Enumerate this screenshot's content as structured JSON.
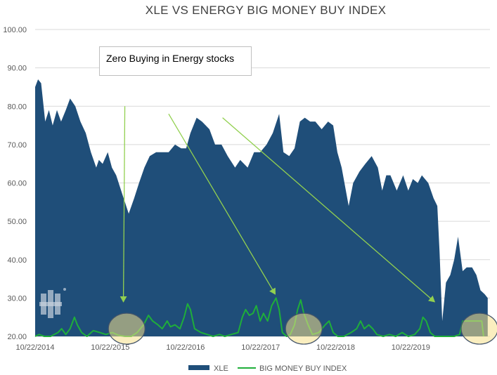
{
  "chart_data": {
    "type": "area",
    "title": "XLE VS ENERGY BIG MONEY BUY INDEX",
    "xlabel": "",
    "ylabel": "",
    "ylim": [
      20,
      100
    ],
    "yticks": [
      "20.00",
      "30.00",
      "40.00",
      "50.00",
      "60.00",
      "70.00",
      "80.00",
      "90.00",
      "100.00"
    ],
    "xlim": [
      "2014-10-22",
      "2020-11-10"
    ],
    "xticks": [
      {
        "date": "2014-10-22",
        "label": "10/22/2014"
      },
      {
        "date": "2015-10-22",
        "label": "10/22/2015"
      },
      {
        "date": "2016-10-22",
        "label": "10/22/2016"
      },
      {
        "date": "2017-10-22",
        "label": "10/22/2017"
      },
      {
        "date": "2018-10-22",
        "label": "10/22/2018"
      },
      {
        "date": "2019-10-22",
        "label": "10/22/2019"
      }
    ],
    "grid": "horizontal",
    "legend_position": "bottom",
    "series": [
      {
        "name": "XLE",
        "kind": "area",
        "color": "#1f4e79",
        "points": [
          [
            "2014-10-22",
            85
          ],
          [
            "2014-11-05",
            87
          ],
          [
            "2014-11-20",
            86
          ],
          [
            "2014-12-10",
            76
          ],
          [
            "2014-12-28",
            79
          ],
          [
            "2015-01-15",
            75
          ],
          [
            "2015-02-05",
            79
          ],
          [
            "2015-02-25",
            76
          ],
          [
            "2015-03-20",
            79
          ],
          [
            "2015-04-10",
            82
          ],
          [
            "2015-05-05",
            80
          ],
          [
            "2015-05-30",
            76
          ],
          [
            "2015-06-25",
            73
          ],
          [
            "2015-07-20",
            68
          ],
          [
            "2015-08-15",
            64
          ],
          [
            "2015-08-28",
            66
          ],
          [
            "2015-09-15",
            65
          ],
          [
            "2015-10-10",
            68
          ],
          [
            "2015-10-30",
            64
          ],
          [
            "2015-11-20",
            62
          ],
          [
            "2015-12-20",
            57
          ],
          [
            "2016-01-20",
            52
          ],
          [
            "2016-02-15",
            56
          ],
          [
            "2016-03-10",
            60
          ],
          [
            "2016-04-05",
            64
          ],
          [
            "2016-05-01",
            67
          ],
          [
            "2016-06-01",
            68
          ],
          [
            "2016-07-01",
            68
          ],
          [
            "2016-08-01",
            68
          ],
          [
            "2016-09-01",
            70
          ],
          [
            "2016-10-01",
            69
          ],
          [
            "2016-10-25",
            69
          ],
          [
            "2016-11-15",
            73
          ],
          [
            "2016-12-15",
            77
          ],
          [
            "2017-01-10",
            76
          ],
          [
            "2017-02-15",
            74
          ],
          [
            "2017-03-15",
            70
          ],
          [
            "2017-04-15",
            70
          ],
          [
            "2017-05-15",
            67
          ],
          [
            "2017-06-20",
            64
          ],
          [
            "2017-07-15",
            66
          ],
          [
            "2017-08-20",
            64
          ],
          [
            "2017-09-20",
            68
          ],
          [
            "2017-10-20",
            68
          ],
          [
            "2017-11-20",
            70
          ],
          [
            "2017-12-20",
            73
          ],
          [
            "2018-01-20",
            78
          ],
          [
            "2018-02-10",
            68
          ],
          [
            "2018-03-10",
            67
          ],
          [
            "2018-04-05",
            69
          ],
          [
            "2018-05-01",
            76
          ],
          [
            "2018-05-25",
            77
          ],
          [
            "2018-06-20",
            76
          ],
          [
            "2018-07-15",
            76
          ],
          [
            "2018-08-15",
            74
          ],
          [
            "2018-09-15",
            76
          ],
          [
            "2018-10-10",
            75
          ],
          [
            "2018-10-30",
            68
          ],
          [
            "2018-11-20",
            64
          ],
          [
            "2018-12-24",
            54
          ],
          [
            "2019-01-15",
            60
          ],
          [
            "2019-02-15",
            63
          ],
          [
            "2019-03-15",
            65
          ],
          [
            "2019-04-15",
            67
          ],
          [
            "2019-05-15",
            64
          ],
          [
            "2019-06-05",
            58
          ],
          [
            "2019-06-25",
            62
          ],
          [
            "2019-07-15",
            62
          ],
          [
            "2019-08-15",
            58
          ],
          [
            "2019-09-15",
            62
          ],
          [
            "2019-10-10",
            58
          ],
          [
            "2019-11-01",
            61
          ],
          [
            "2019-11-25",
            60
          ],
          [
            "2019-12-15",
            62
          ],
          [
            "2020-01-15",
            60
          ],
          [
            "2020-02-10",
            56
          ],
          [
            "2020-02-28",
            54
          ],
          [
            "2020-03-10",
            42
          ],
          [
            "2020-03-23",
            24
          ],
          [
            "2020-04-10",
            34
          ],
          [
            "2020-05-01",
            36
          ],
          [
            "2020-05-20",
            40
          ],
          [
            "2020-06-08",
            46
          ],
          [
            "2020-06-30",
            37
          ],
          [
            "2020-07-20",
            38
          ],
          [
            "2020-08-15",
            38
          ],
          [
            "2020-09-05",
            36
          ],
          [
            "2020-09-25",
            32
          ],
          [
            "2020-10-15",
            31
          ],
          [
            "2020-10-30",
            30
          ]
        ]
      },
      {
        "name": "BIG MONEY BUY INDEX",
        "kind": "line",
        "color": "#1fae3a",
        "points": [
          [
            "2014-10-22",
            20
          ],
          [
            "2014-11-10",
            20.5
          ],
          [
            "2014-12-05",
            20
          ],
          [
            "2015-01-05",
            20
          ],
          [
            "2015-02-10",
            21
          ],
          [
            "2015-02-28",
            22
          ],
          [
            "2015-03-20",
            20.5
          ],
          [
            "2015-04-10",
            22
          ],
          [
            "2015-05-01",
            25
          ],
          [
            "2015-05-15",
            23
          ],
          [
            "2015-06-05",
            21
          ],
          [
            "2015-07-01",
            20
          ],
          [
            "2015-08-01",
            21.5
          ],
          [
            "2015-09-01",
            21
          ],
          [
            "2015-10-01",
            20.5
          ],
          [
            "2015-11-01",
            21
          ],
          [
            "2015-12-01",
            20.3
          ],
          [
            "2016-01-01",
            20
          ],
          [
            "2016-02-01",
            20
          ],
          [
            "2016-03-01",
            21
          ],
          [
            "2016-04-01",
            23
          ],
          [
            "2016-04-25",
            25.5
          ],
          [
            "2016-05-15",
            24
          ],
          [
            "2016-06-10",
            23
          ],
          [
            "2016-07-01",
            22
          ],
          [
            "2016-07-25",
            24
          ],
          [
            "2016-08-10",
            22.5
          ],
          [
            "2016-09-01",
            23
          ],
          [
            "2016-09-25",
            22
          ],
          [
            "2016-10-15",
            25
          ],
          [
            "2016-11-01",
            28.5
          ],
          [
            "2016-11-15",
            27
          ],
          [
            "2016-12-05",
            22
          ],
          [
            "2017-01-05",
            21
          ],
          [
            "2017-02-05",
            20.5
          ],
          [
            "2017-03-05",
            20
          ],
          [
            "2017-04-05",
            20.5
          ],
          [
            "2017-05-01",
            20
          ],
          [
            "2017-06-01",
            20.5
          ],
          [
            "2017-07-05",
            21
          ],
          [
            "2017-07-25",
            25
          ],
          [
            "2017-08-10",
            27
          ],
          [
            "2017-08-28",
            25.5
          ],
          [
            "2017-09-15",
            26
          ],
          [
            "2017-10-01",
            28
          ],
          [
            "2017-10-20",
            24
          ],
          [
            "2017-11-05",
            26
          ],
          [
            "2017-11-25",
            24
          ],
          [
            "2017-12-15",
            28
          ],
          [
            "2018-01-05",
            30
          ],
          [
            "2018-01-20",
            27
          ],
          [
            "2018-02-05",
            21
          ],
          [
            "2018-02-25",
            20
          ],
          [
            "2018-03-15",
            20.5
          ],
          [
            "2018-04-05",
            23
          ],
          [
            "2018-04-20",
            27
          ],
          [
            "2018-05-05",
            29.5
          ],
          [
            "2018-05-20",
            26
          ],
          [
            "2018-06-10",
            23
          ],
          [
            "2018-07-01",
            20.5
          ],
          [
            "2018-08-01",
            21
          ],
          [
            "2018-09-01",
            23
          ],
          [
            "2018-09-20",
            24
          ],
          [
            "2018-10-10",
            21
          ],
          [
            "2018-11-01",
            20
          ],
          [
            "2018-12-01",
            20
          ],
          [
            "2019-01-05",
            21
          ],
          [
            "2019-02-01",
            22
          ],
          [
            "2019-02-20",
            24
          ],
          [
            "2019-03-10",
            22
          ],
          [
            "2019-04-01",
            23
          ],
          [
            "2019-04-20",
            22
          ],
          [
            "2019-05-10",
            20.5
          ],
          [
            "2019-06-10",
            20
          ],
          [
            "2019-07-10",
            20.5
          ],
          [
            "2019-08-10",
            20
          ],
          [
            "2019-09-10",
            21
          ],
          [
            "2019-10-10",
            20
          ],
          [
            "2019-11-10",
            20.5
          ],
          [
            "2019-12-05",
            22
          ],
          [
            "2019-12-20",
            25
          ],
          [
            "2020-01-05",
            24
          ],
          [
            "2020-01-25",
            21
          ],
          [
            "2020-02-15",
            20
          ],
          [
            "2020-03-15",
            20
          ],
          [
            "2020-04-15",
            20
          ],
          [
            "2020-05-20",
            20
          ],
          [
            "2020-06-15",
            20.5
          ],
          [
            "2020-07-01",
            24
          ],
          [
            "2020-08-01",
            24
          ],
          [
            "2020-09-01",
            24
          ],
          [
            "2020-10-01",
            24
          ],
          [
            "2020-10-10",
            20
          ]
        ]
      }
    ],
    "annotations": {
      "text_box": "Zero Buying in Energy stocks",
      "arrows": [
        {
          "from": [
            "2016-01-01",
            80
          ],
          "to": [
            "2015-12-25",
            29
          ]
        },
        {
          "from": [
            "2016-08-01",
            78
          ],
          "to": [
            "2018-01-01",
            31
          ]
        },
        {
          "from": [
            "2017-04-20",
            77
          ],
          "to": [
            "2020-02-15",
            29
          ]
        }
      ],
      "highlight_circles": [
        {
          "date": "2016-01-10",
          "value": 22
        },
        {
          "date": "2018-05-20",
          "value": 22
        },
        {
          "date": "2020-09-20",
          "value": 22
        }
      ]
    }
  }
}
